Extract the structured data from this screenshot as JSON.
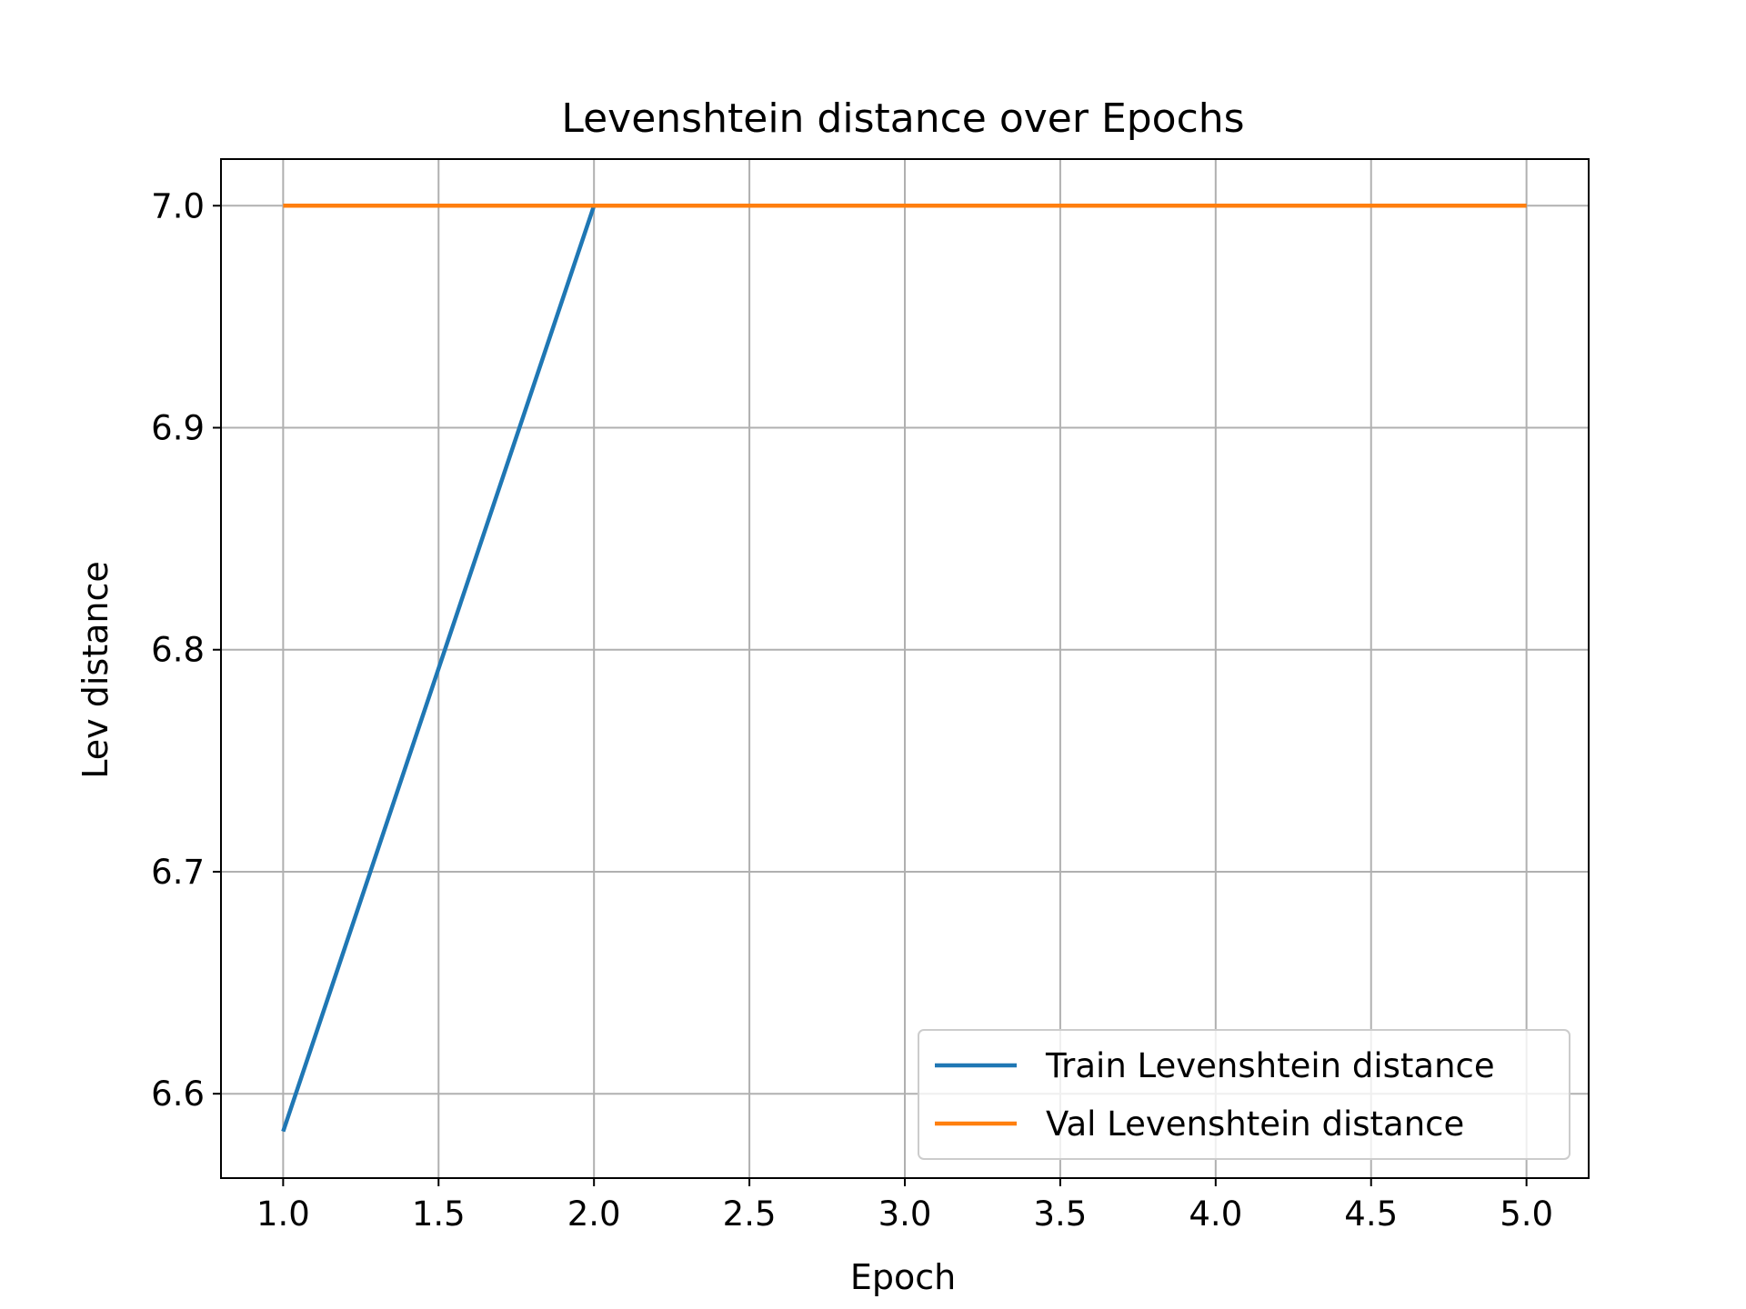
{
  "chart_data": {
    "type": "line",
    "title": "Levenshtein distance over Epochs",
    "xlabel": "Epoch",
    "ylabel": "Lev distance",
    "xlim": [
      0.8,
      5.2
    ],
    "ylim": [
      6.562,
      7.021
    ],
    "xticks": [
      1.0,
      1.5,
      2.0,
      2.5,
      3.0,
      3.5,
      4.0,
      4.5,
      5.0
    ],
    "xtick_labels": [
      "1.0",
      "1.5",
      "2.0",
      "2.5",
      "3.0",
      "3.5",
      "4.0",
      "4.5",
      "5.0"
    ],
    "yticks": [
      6.6,
      6.7,
      6.8,
      6.9,
      7.0
    ],
    "ytick_labels": [
      "6.6",
      "6.7",
      "6.8",
      "6.9",
      "7.0"
    ],
    "grid": true,
    "legend_position": "lower right",
    "x": [
      1,
      2,
      3,
      4,
      5
    ],
    "series": [
      {
        "name": "Train Levenshtein distance",
        "color": "#1f77b4",
        "values": [
          6.583,
          7.0,
          7.0,
          7.0,
          7.0
        ]
      },
      {
        "name": "Val Levenshtein distance",
        "color": "#ff7f0e",
        "values": [
          7.0,
          7.0,
          7.0,
          7.0,
          7.0
        ]
      }
    ]
  }
}
